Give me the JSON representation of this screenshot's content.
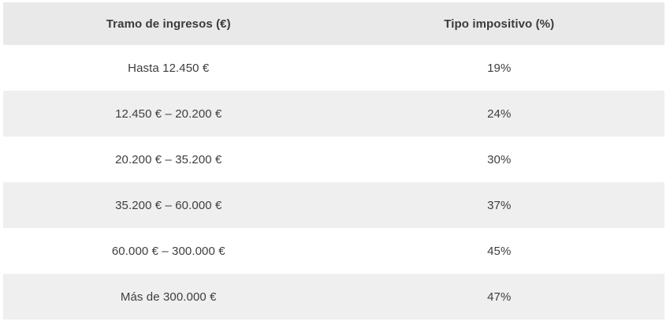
{
  "chart_data": {
    "type": "table",
    "columns": [
      "Tramo de ingresos (€)",
      "Tipo impositivo (%)"
    ],
    "rows": [
      [
        "Hasta 12.450 €",
        "19%"
      ],
      [
        "12.450 € – 20.200 €",
        "24%"
      ],
      [
        "20.200 € – 35.200 €",
        "30%"
      ],
      [
        "35.200 € – 60.000 €",
        "37%"
      ],
      [
        "60.000 € – 300.000 €",
        "45%"
      ],
      [
        "Más de 300.000 €",
        "47%"
      ]
    ],
    "layout": {
      "columns_centered": true,
      "striped_rows": true,
      "header_background_shaded": true
    }
  },
  "colors": {
    "page_bg": "#ffffff",
    "header_bg": "#e9e9e9",
    "stripe_bg": "#f0eff0",
    "row_bg": "#ffffff",
    "header_text": "#3b3b3b",
    "cell_text": "#3e3e3e"
  }
}
